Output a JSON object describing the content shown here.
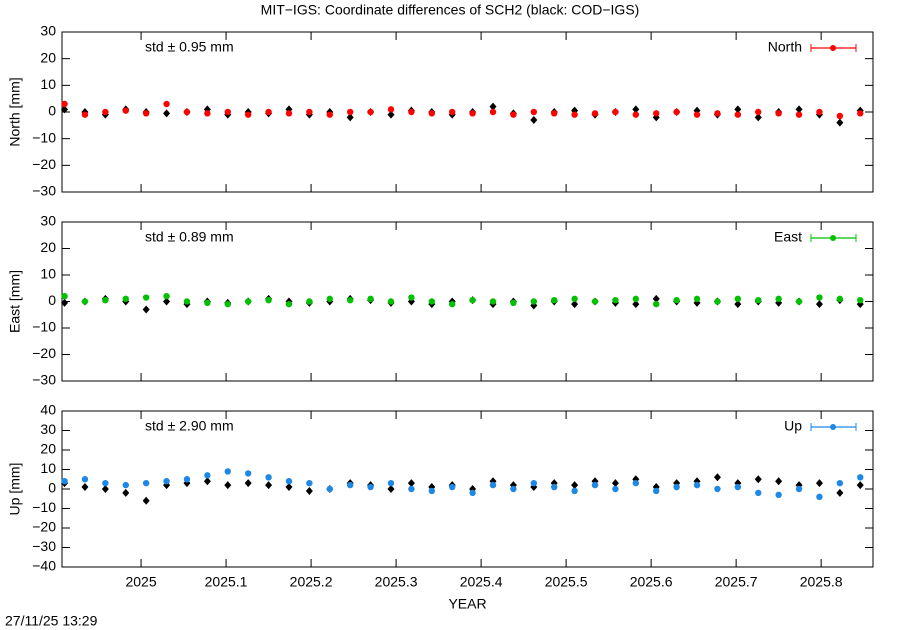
{
  "title": "MIT−IGS: Coordinate differences of SCH2 (black: COD−IGS)",
  "timestamp": "27/11/25 13:29",
  "chart_data": [
    {
      "type": "scatter",
      "ylabel": "North [mm]",
      "annotation": "std ± 0.95 mm",
      "xlim": [
        2024.907,
        2025.861
      ],
      "xticks": [
        2025,
        2025.1,
        2025.2,
        2025.3,
        2025.4,
        2025.5,
        2025.6,
        2025.7,
        2025.8
      ],
      "ylim": [
        -30,
        30
      ],
      "yticks": [
        {
          "value": -30,
          "label": "−30"
        },
        {
          "value": -20,
          "label": "−20"
        },
        {
          "value": -10,
          "label": "−10"
        },
        0,
        10,
        20,
        30
      ],
      "x": [
        2024.91,
        2024.934,
        2024.958,
        2024.982,
        2025.006,
        2025.03,
        2025.054,
        2025.078,
        2025.102,
        2025.126,
        2025.15,
        2025.174,
        2025.198,
        2025.222,
        2025.246,
        2025.27,
        2025.294,
        2025.318,
        2025.342,
        2025.366,
        2025.39,
        2025.414,
        2025.438,
        2025.462,
        2025.486,
        2025.51,
        2025.534,
        2025.558,
        2025.582,
        2025.606,
        2025.63,
        2025.654,
        2025.678,
        2025.702,
        2025.726,
        2025.75,
        2025.774,
        2025.798,
        2025.822,
        2025.846
      ],
      "series": [
        {
          "color": "#000000",
          "values": [
            1,
            0,
            -1,
            1,
            0,
            -0.5,
            0,
            1,
            -1,
            0,
            -0.5,
            1,
            -1,
            0,
            -2,
            0,
            -1,
            0.5,
            0,
            -1,
            0,
            2,
            -0.5,
            -3,
            0,
            0.5,
            -1,
            0,
            1,
            -2,
            0,
            0.5,
            -1,
            1,
            -2,
            0,
            1,
            -1,
            -4,
            0.5
          ]
        },
        {
          "name": "North",
          "color": "#ff0000",
          "values": [
            3,
            -1,
            0,
            0.5,
            -0.5,
            3,
            0,
            -0.5,
            0,
            -1,
            0,
            -0.5,
            0,
            -1,
            0,
            0,
            1,
            0,
            -0.5,
            0,
            -0.5,
            0,
            -1,
            0,
            -0.5,
            -1,
            -0.5,
            0,
            -1,
            -0.5,
            0,
            -1,
            -0.5,
            -1,
            0,
            -0.5,
            -1,
            0,
            -1.5,
            -0.5
          ]
        }
      ]
    },
    {
      "type": "scatter",
      "ylabel": "East [mm]",
      "annotation": "std ± 0.89 mm",
      "xlim": [
        2024.907,
        2025.861
      ],
      "xticks": [
        2025,
        2025.1,
        2025.2,
        2025.3,
        2025.4,
        2025.5,
        2025.6,
        2025.7,
        2025.8
      ],
      "ylim": [
        -30,
        30
      ],
      "yticks": [
        {
          "value": -30,
          "label": "−30"
        },
        {
          "value": -20,
          "label": "−20"
        },
        {
          "value": -10,
          "label": "−10"
        },
        0,
        10,
        20,
        30
      ],
      "x": [
        2024.91,
        2024.934,
        2024.958,
        2024.982,
        2025.006,
        2025.03,
        2025.054,
        2025.078,
        2025.102,
        2025.126,
        2025.15,
        2025.174,
        2025.198,
        2025.222,
        2025.246,
        2025.27,
        2025.294,
        2025.318,
        2025.342,
        2025.366,
        2025.39,
        2025.414,
        2025.438,
        2025.462,
        2025.486,
        2025.51,
        2025.534,
        2025.558,
        2025.582,
        2025.606,
        2025.63,
        2025.654,
        2025.678,
        2025.702,
        2025.726,
        2025.75,
        2025.774,
        2025.798,
        2025.822,
        2025.846
      ],
      "series": [
        {
          "color": "#000000",
          "values": [
            -0.5,
            0,
            1,
            0,
            -3,
            0,
            -1,
            0,
            -0.5,
            0,
            1,
            0,
            -0.5,
            0,
            1,
            0.5,
            -0.5,
            0,
            -1,
            0,
            0.5,
            -1,
            0,
            -1.5,
            0,
            -1,
            0,
            -0.5,
            -1,
            1,
            0,
            -0.5,
            0,
            -1,
            0,
            -0.5,
            0,
            -1,
            0.5,
            -1
          ]
        },
        {
          "name": "East",
          "color": "#00c000",
          "values": [
            2,
            0,
            0.5,
            1,
            1.5,
            2,
            0,
            -0.5,
            -1,
            0,
            0.5,
            -1,
            0,
            1,
            0.5,
            1,
            0,
            1.5,
            0,
            -1,
            0.5,
            0,
            -0.5,
            0,
            0.5,
            1,
            0,
            0.5,
            1,
            -1,
            0.5,
            1,
            0,
            1,
            0.5,
            1,
            0,
            1.5,
            1,
            0.5
          ]
        }
      ]
    },
    {
      "type": "scatter",
      "ylabel": "Up [mm]",
      "xlabel": "YEAR",
      "annotation": "std ± 2.90 mm",
      "xlim": [
        2024.907,
        2025.861
      ],
      "xticks": [
        2025,
        2025.1,
        2025.2,
        2025.3,
        2025.4,
        2025.5,
        2025.6,
        2025.7,
        2025.8
      ],
      "ylim": [
        -40,
        40
      ],
      "yticks": [
        {
          "value": -40,
          "label": "−40"
        },
        {
          "value": -30,
          "label": "−30"
        },
        {
          "value": -20,
          "label": "−20"
        },
        {
          "value": -10,
          "label": "−10"
        },
        0,
        10,
        20,
        30,
        40
      ],
      "x": [
        2024.91,
        2024.934,
        2024.958,
        2024.982,
        2025.006,
        2025.03,
        2025.054,
        2025.078,
        2025.102,
        2025.126,
        2025.15,
        2025.174,
        2025.198,
        2025.222,
        2025.246,
        2025.27,
        2025.294,
        2025.318,
        2025.342,
        2025.366,
        2025.39,
        2025.414,
        2025.438,
        2025.462,
        2025.486,
        2025.51,
        2025.534,
        2025.558,
        2025.582,
        2025.606,
        2025.63,
        2025.654,
        2025.678,
        2025.702,
        2025.726,
        2025.75,
        2025.774,
        2025.798,
        2025.822,
        2025.846
      ],
      "series": [
        {
          "color": "#000000",
          "values": [
            3,
            1,
            0,
            -2,
            -6,
            2,
            3,
            4,
            2,
            3,
            2,
            1,
            -1,
            0,
            3,
            2,
            0,
            3,
            1,
            2,
            0,
            4,
            2,
            1,
            3,
            2,
            4,
            3,
            5,
            1,
            3,
            4,
            6,
            3,
            5,
            4,
            2,
            3,
            -2,
            2
          ]
        },
        {
          "name": "Up",
          "color": "#1e88e5",
          "values": [
            4,
            5,
            3,
            2,
            3,
            4,
            5,
            7,
            9,
            8,
            6,
            4,
            3,
            0,
            2,
            1,
            3,
            0,
            -1,
            1,
            -2,
            2,
            0,
            3,
            1,
            -1,
            2,
            0,
            3,
            -1,
            1,
            2,
            0,
            1,
            -2,
            -3,
            0,
            -4,
            3,
            6
          ]
        }
      ]
    }
  ]
}
